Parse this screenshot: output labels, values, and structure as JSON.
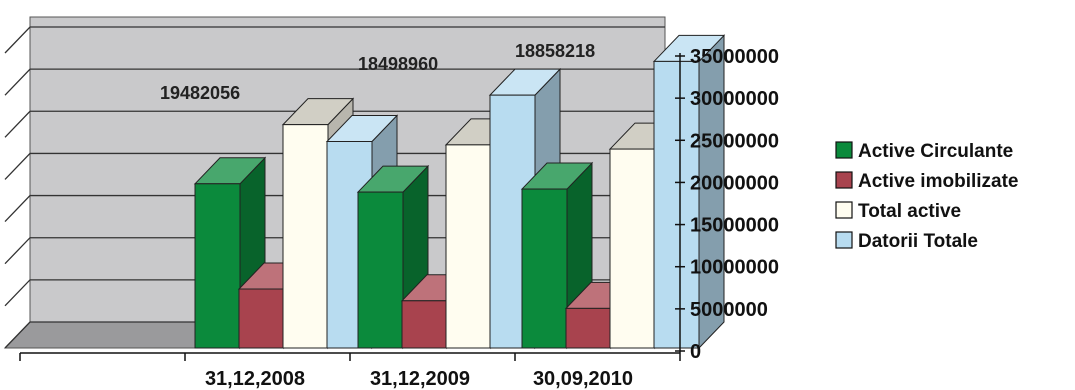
{
  "chart_data": {
    "type": "bar",
    "categories": [
      "31,12,2008",
      "31,12,2009",
      "30,09,2010"
    ],
    "series": [
      {
        "name": "Active Circulante",
        "values": [
          19482056,
          18498960,
          18858218
        ],
        "color": "#0b8a3c"
      },
      {
        "name": "Active imobilizate",
        "values": [
          7000000,
          5600000,
          4700000
        ],
        "color": "#a8434e"
      },
      {
        "name": "Total active",
        "values": [
          26500000,
          24100000,
          23600000
        ],
        "color": "#fffdf0"
      },
      {
        "name": "Datorii Totale",
        "values": [
          24500000,
          30000000,
          34000000
        ],
        "color": "#b8dcf0"
      }
    ],
    "data_labels": [
      "19482056",
      "18498960",
      "18858218"
    ],
    "yticks": [
      "0",
      "5000000",
      "10000000",
      "15000000",
      "20000000",
      "25000000",
      "30000000",
      "35000000"
    ],
    "ylim": [
      0,
      35000000
    ],
    "grid": true,
    "legend": "right",
    "style": "3d-column"
  }
}
